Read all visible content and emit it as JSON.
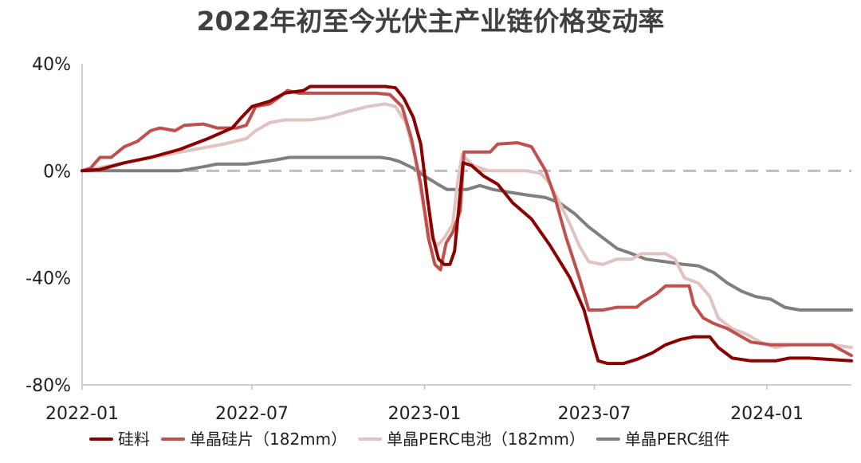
{
  "chart_data": {
    "type": "line",
    "title": "2022年初至今光伏主产业链价格变动率",
    "xlabel": "",
    "ylabel": "",
    "x_ticks": [
      "2022-01",
      "2022-07",
      "2023-01",
      "2023-07",
      "2024-01"
    ],
    "x_range": [
      "2022-01-01",
      "2024-03-31"
    ],
    "y_ticks": [
      "40%",
      "0%",
      "-40%",
      "-80%"
    ],
    "y_tick_values": [
      40,
      0,
      -40,
      -80
    ],
    "ylim": [
      -80,
      40
    ],
    "y_unit": "%",
    "grid": false,
    "zero_line": {
      "value": 0,
      "style": "dashed",
      "color": "#bfbfbf"
    },
    "legend_position": "bottom",
    "series": [
      {
        "name": "硅料",
        "color": "#8b0000",
        "points": [
          [
            "2022-01-01",
            0
          ],
          [
            "2022-01-20",
            0.5
          ],
          [
            "2022-02-15",
            3
          ],
          [
            "2022-03-15",
            5
          ],
          [
            "2022-04-15",
            8
          ],
          [
            "2022-05-15",
            12
          ],
          [
            "2022-06-10",
            16
          ],
          [
            "2022-06-20",
            20
          ],
          [
            "2022-07-01",
            24
          ],
          [
            "2022-07-20",
            26
          ],
          [
            "2022-08-05",
            29
          ],
          [
            "2022-08-25",
            30
          ],
          [
            "2022-09-01",
            31.5
          ],
          [
            "2022-10-15",
            31.5
          ],
          [
            "2022-11-20",
            31.5
          ],
          [
            "2022-12-01",
            31
          ],
          [
            "2022-12-10",
            27
          ],
          [
            "2022-12-20",
            20
          ],
          [
            "2022-12-28",
            10
          ],
          [
            "2023-01-04",
            -10
          ],
          [
            "2023-01-10",
            -25
          ],
          [
            "2023-01-16",
            -33
          ],
          [
            "2023-01-22",
            -35
          ],
          [
            "2023-01-28",
            -35
          ],
          [
            "2023-02-02",
            -30
          ],
          [
            "2023-02-07",
            -12
          ],
          [
            "2023-02-11",
            3
          ],
          [
            "2023-02-20",
            2
          ],
          [
            "2023-03-05",
            -2
          ],
          [
            "2023-03-20",
            -5
          ],
          [
            "2023-04-05",
            -12
          ],
          [
            "2023-04-25",
            -18
          ],
          [
            "2023-05-15",
            -28
          ],
          [
            "2023-06-05",
            -40
          ],
          [
            "2023-06-20",
            -52
          ],
          [
            "2023-06-30",
            -65
          ],
          [
            "2023-07-05",
            -71
          ],
          [
            "2023-07-15",
            -72
          ],
          [
            "2023-08-01",
            -72
          ],
          [
            "2023-08-15",
            -70.5
          ],
          [
            "2023-09-01",
            -68
          ],
          [
            "2023-09-15",
            -65
          ],
          [
            "2023-10-01",
            -63
          ],
          [
            "2023-10-15",
            -62
          ],
          [
            "2023-11-01",
            -62
          ],
          [
            "2023-11-10",
            -66
          ],
          [
            "2023-11-25",
            -70
          ],
          [
            "2023-12-15",
            -71
          ],
          [
            "2024-01-10",
            -71
          ],
          [
            "2024-01-25",
            -70
          ],
          [
            "2024-02-15",
            -70
          ],
          [
            "2024-03-31",
            -71
          ]
        ]
      },
      {
        "name": "单晶硅片（182mm）",
        "color": "#c0504d",
        "points": [
          [
            "2022-01-01",
            0
          ],
          [
            "2022-01-10",
            1
          ],
          [
            "2022-01-20",
            5
          ],
          [
            "2022-02-01",
            5
          ],
          [
            "2022-02-15",
            9
          ],
          [
            "2022-03-01",
            11
          ],
          [
            "2022-03-15",
            15
          ],
          [
            "2022-03-25",
            16
          ],
          [
            "2022-04-10",
            15
          ],
          [
            "2022-04-20",
            17
          ],
          [
            "2022-05-10",
            17.5
          ],
          [
            "2022-05-25",
            16
          ],
          [
            "2022-06-15",
            16
          ],
          [
            "2022-06-25",
            17
          ],
          [
            "2022-07-05",
            24
          ],
          [
            "2022-07-20",
            25
          ],
          [
            "2022-08-01",
            28
          ],
          [
            "2022-08-08",
            30
          ],
          [
            "2022-08-20",
            29
          ],
          [
            "2022-10-15",
            29
          ],
          [
            "2022-11-01",
            29
          ],
          [
            "2022-11-10",
            29
          ],
          [
            "2022-11-25",
            28.5
          ],
          [
            "2022-12-08",
            24
          ],
          [
            "2022-12-18",
            12
          ],
          [
            "2022-12-28",
            -5
          ],
          [
            "2023-01-05",
            -25
          ],
          [
            "2023-01-12",
            -35
          ],
          [
            "2023-01-18",
            -37
          ],
          [
            "2023-01-24",
            -27
          ],
          [
            "2023-01-31",
            -23
          ],
          [
            "2023-02-08",
            -15
          ],
          [
            "2023-02-12",
            7
          ],
          [
            "2023-02-22",
            7
          ],
          [
            "2023-03-12",
            7
          ],
          [
            "2023-03-20",
            10
          ],
          [
            "2023-04-10",
            10.5
          ],
          [
            "2023-04-25",
            9
          ],
          [
            "2023-05-10",
            0
          ],
          [
            "2023-05-20",
            -10
          ],
          [
            "2023-06-01",
            -25
          ],
          [
            "2023-06-15",
            -40
          ],
          [
            "2023-06-25",
            -52
          ],
          [
            "2023-07-10",
            -52
          ],
          [
            "2023-07-25",
            -51
          ],
          [
            "2023-08-15",
            -51
          ],
          [
            "2023-08-22",
            -49
          ],
          [
            "2023-09-05",
            -46
          ],
          [
            "2023-09-15",
            -43
          ],
          [
            "2023-10-10",
            -43
          ],
          [
            "2023-10-15",
            -50
          ],
          [
            "2023-10-25",
            -55
          ],
          [
            "2023-11-05",
            -57
          ],
          [
            "2023-11-20",
            -59
          ],
          [
            "2023-12-05",
            -62
          ],
          [
            "2023-12-15",
            -64
          ],
          [
            "2024-01-05",
            -65
          ],
          [
            "2024-01-20",
            -65
          ],
          [
            "2024-02-15",
            -65
          ],
          [
            "2024-03-10",
            -65
          ],
          [
            "2024-03-31",
            -69
          ]
        ]
      },
      {
        "name": "单晶PERC电池（182mm）",
        "color": "#e1c3bf",
        "points": [
          [
            "2022-01-01",
            0
          ],
          [
            "2022-02-01",
            2
          ],
          [
            "2022-03-01",
            4
          ],
          [
            "2022-04-01",
            6
          ],
          [
            "2022-05-01",
            8
          ],
          [
            "2022-06-01",
            10
          ],
          [
            "2022-06-25",
            12
          ],
          [
            "2022-07-05",
            15
          ],
          [
            "2022-07-20",
            18
          ],
          [
            "2022-08-05",
            19
          ],
          [
            "2022-09-01",
            19
          ],
          [
            "2022-09-20",
            20
          ],
          [
            "2022-10-10",
            22
          ],
          [
            "2022-11-01",
            24
          ],
          [
            "2022-11-20",
            25
          ],
          [
            "2022-12-01",
            24
          ],
          [
            "2022-12-12",
            18
          ],
          [
            "2022-12-22",
            5
          ],
          [
            "2022-12-30",
            -12
          ],
          [
            "2023-01-08",
            -25
          ],
          [
            "2023-01-15",
            -28
          ],
          [
            "2023-01-22",
            -25
          ],
          [
            "2023-01-31",
            -20
          ],
          [
            "2023-02-05",
            -5
          ],
          [
            "2023-02-10",
            6
          ],
          [
            "2023-02-22",
            2
          ],
          [
            "2023-03-10",
            0
          ],
          [
            "2023-04-01",
            0
          ],
          [
            "2023-04-20",
            0
          ],
          [
            "2023-05-05",
            -1
          ],
          [
            "2023-05-15",
            -5
          ],
          [
            "2023-05-25",
            -12
          ],
          [
            "2023-06-05",
            -20
          ],
          [
            "2023-06-15",
            -28
          ],
          [
            "2023-06-25",
            -34
          ],
          [
            "2023-07-10",
            -35
          ],
          [
            "2023-07-25",
            -33
          ],
          [
            "2023-08-10",
            -33
          ],
          [
            "2023-08-20",
            -31
          ],
          [
            "2023-09-15",
            -31
          ],
          [
            "2023-09-25",
            -33
          ],
          [
            "2023-10-05",
            -40
          ],
          [
            "2023-10-20",
            -42
          ],
          [
            "2023-11-01",
            -47
          ],
          [
            "2023-11-10",
            -55
          ],
          [
            "2023-11-25",
            -59
          ],
          [
            "2023-12-10",
            -61
          ],
          [
            "2023-12-25",
            -64
          ],
          [
            "2024-01-10",
            -66
          ],
          [
            "2024-01-25",
            -65
          ],
          [
            "2024-02-15",
            -65
          ],
          [
            "2024-03-10",
            -65
          ],
          [
            "2024-03-31",
            -66
          ]
        ]
      },
      {
        "name": "单晶PERC组件",
        "color": "#7f7f7f",
        "points": [
          [
            "2022-01-01",
            0
          ],
          [
            "2022-03-01",
            0
          ],
          [
            "2022-04-15",
            0
          ],
          [
            "2022-05-10",
            1.5
          ],
          [
            "2022-05-25",
            2.5
          ],
          [
            "2022-06-25",
            2.5
          ],
          [
            "2022-07-05",
            3
          ],
          [
            "2022-07-25",
            4
          ],
          [
            "2022-08-10",
            5
          ],
          [
            "2022-10-01",
            5
          ],
          [
            "2022-11-15",
            5
          ],
          [
            "2022-11-25",
            4.5
          ],
          [
            "2022-12-05",
            3.5
          ],
          [
            "2022-12-20",
            1
          ],
          [
            "2023-01-01",
            -2
          ],
          [
            "2023-01-15",
            -5
          ],
          [
            "2023-01-25",
            -7
          ],
          [
            "2023-02-15",
            -7
          ],
          [
            "2023-03-01",
            -5.5
          ],
          [
            "2023-03-15",
            -7
          ],
          [
            "2023-04-01",
            -8
          ],
          [
            "2023-04-20",
            -9
          ],
          [
            "2023-05-10",
            -10
          ],
          [
            "2023-05-25",
            -12
          ],
          [
            "2023-06-10",
            -16
          ],
          [
            "2023-06-25",
            -21
          ],
          [
            "2023-07-10",
            -25
          ],
          [
            "2023-07-25",
            -29
          ],
          [
            "2023-08-10",
            -31
          ],
          [
            "2023-08-25",
            -33
          ],
          [
            "2023-09-15",
            -34
          ],
          [
            "2023-10-05",
            -35
          ],
          [
            "2023-10-20",
            -35.5
          ],
          [
            "2023-11-05",
            -38
          ],
          [
            "2023-11-20",
            -42
          ],
          [
            "2023-12-05",
            -45
          ],
          [
            "2023-12-20",
            -47
          ],
          [
            "2024-01-05",
            -48
          ],
          [
            "2024-01-20",
            -51
          ],
          [
            "2024-02-05",
            -52
          ],
          [
            "2024-02-20",
            -52
          ],
          [
            "2024-03-31",
            -52
          ]
        ]
      }
    ]
  }
}
